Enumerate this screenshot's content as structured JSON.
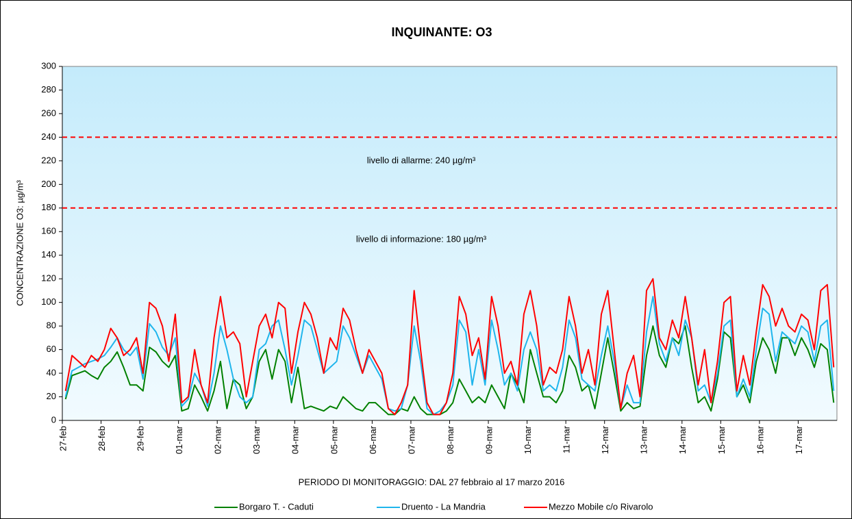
{
  "chart_data": {
    "type": "line",
    "title": "INQUINANTE: O3",
    "x_label": "PERIODO DI MONITORAGGIO:  DAL 27 febbraio al 17 marzo 2016",
    "y_label": "CONCENTRAZIONE  O3: µg/m³",
    "ylim": [
      0,
      300
    ],
    "yticks": [
      0,
      20,
      40,
      60,
      80,
      100,
      120,
      140,
      160,
      180,
      200,
      220,
      240,
      260,
      280,
      300
    ],
    "thresholds": [
      {
        "value": 240,
        "color": "#ff0000",
        "label": "livello di allarme: 240 µg/m³"
      },
      {
        "value": 180,
        "color": "#ff0000",
        "label": "livello di informazione: 180 µg/m³"
      }
    ],
    "legend": "bottom",
    "categories": [
      "27-feb",
      null,
      null,
      null,
      null,
      null,
      "28-feb",
      null,
      null,
      null,
      null,
      null,
      "29-feb",
      null,
      null,
      null,
      null,
      null,
      "01-mar",
      null,
      null,
      null,
      null,
      null,
      "02-mar",
      null,
      null,
      null,
      null,
      null,
      "03-mar",
      null,
      null,
      null,
      null,
      null,
      "04-mar",
      null,
      null,
      null,
      null,
      null,
      "05-mar",
      null,
      null,
      null,
      null,
      null,
      "06-mar",
      null,
      null,
      null,
      null,
      null,
      "07-mar",
      null,
      null,
      null,
      null,
      null,
      "08-mar",
      null,
      null,
      null,
      null,
      null,
      "09-mar",
      null,
      null,
      null,
      null,
      null,
      "10-mar",
      null,
      null,
      null,
      null,
      null,
      "11-mar",
      null,
      null,
      null,
      null,
      null,
      "12-mar",
      null,
      null,
      null,
      null,
      null,
      "13-mar",
      null,
      null,
      null,
      null,
      null,
      "14-mar",
      null,
      null,
      null,
      null,
      null,
      "15-mar",
      null,
      null,
      null,
      null,
      null,
      "16-mar",
      null,
      null,
      null,
      null,
      null,
      "17-mar",
      null,
      null,
      null,
      null,
      null
    ],
    "series": [
      {
        "name": "Borgaro T. - Caduti",
        "color": "#008000",
        "values": [
          18,
          38,
          40,
          42,
          38,
          35,
          45,
          50,
          58,
          45,
          30,
          30,
          25,
          62,
          58,
          50,
          45,
          55,
          8,
          10,
          30,
          20,
          8,
          25,
          50,
          10,
          35,
          30,
          10,
          20,
          50,
          60,
          35,
          60,
          50,
          15,
          45,
          10,
          12,
          10,
          8,
          12,
          10,
          20,
          15,
          10,
          8,
          15,
          15,
          10,
          5,
          5,
          10,
          8,
          20,
          10,
          5,
          5,
          5,
          8,
          15,
          35,
          25,
          15,
          20,
          15,
          30,
          20,
          10,
          40,
          30,
          15,
          60,
          40,
          20,
          20,
          15,
          25,
          55,
          45,
          25,
          30,
          10,
          40,
          70,
          40,
          8,
          15,
          10,
          12,
          55,
          80,
          55,
          45,
          70,
          65,
          80,
          45,
          15,
          20,
          8,
          35,
          75,
          70,
          20,
          30,
          15,
          50,
          70,
          60,
          40,
          70,
          70,
          55,
          70,
          60,
          45,
          65,
          60,
          15
        ]
      },
      {
        "name": "Druento - La Mandria",
        "color": "#1fb5ec",
        "values": [
          20,
          42,
          45,
          48,
          50,
          52,
          55,
          62,
          70,
          60,
          55,
          62,
          35,
          82,
          75,
          62,
          55,
          70,
          12,
          18,
          40,
          30,
          12,
          40,
          80,
          60,
          35,
          20,
          15,
          20,
          60,
          65,
          80,
          85,
          60,
          30,
          55,
          85,
          80,
          60,
          40,
          45,
          50,
          80,
          70,
          55,
          40,
          55,
          45,
          35,
          10,
          8,
          10,
          30,
          80,
          50,
          10,
          5,
          8,
          15,
          30,
          85,
          75,
          30,
          60,
          30,
          85,
          60,
          30,
          40,
          25,
          60,
          75,
          60,
          25,
          30,
          25,
          45,
          85,
          70,
          35,
          30,
          25,
          55,
          80,
          50,
          10,
          30,
          15,
          15,
          75,
          105,
          65,
          50,
          70,
          55,
          85,
          70,
          25,
          30,
          15,
          40,
          80,
          85,
          20,
          35,
          20,
          60,
          95,
          90,
          50,
          75,
          70,
          65,
          80,
          75,
          50,
          80,
          85,
          25
        ]
      },
      {
        "name": "Mezzo Mobile c/o Rivarolo",
        "color": "#ff0000",
        "values": [
          25,
          55,
          50,
          45,
          55,
          50,
          60,
          78,
          70,
          55,
          60,
          70,
          40,
          100,
          95,
          80,
          50,
          90,
          15,
          20,
          60,
          30,
          15,
          70,
          105,
          70,
          75,
          65,
          20,
          50,
          80,
          90,
          70,
          100,
          95,
          40,
          75,
          100,
          90,
          70,
          40,
          70,
          60,
          95,
          85,
          60,
          40,
          60,
          50,
          40,
          10,
          5,
          15,
          30,
          110,
          60,
          15,
          5,
          5,
          15,
          40,
          105,
          90,
          55,
          70,
          35,
          105,
          80,
          40,
          50,
          30,
          90,
          110,
          80,
          30,
          45,
          40,
          60,
          105,
          80,
          40,
          60,
          30,
          90,
          110,
          60,
          10,
          40,
          55,
          20,
          110,
          120,
          70,
          60,
          85,
          70,
          105,
          70,
          30,
          60,
          15,
          50,
          100,
          105,
          25,
          55,
          30,
          75,
          115,
          105,
          80,
          95,
          80,
          75,
          90,
          85,
          60,
          110,
          115,
          45
        ]
      }
    ]
  }
}
